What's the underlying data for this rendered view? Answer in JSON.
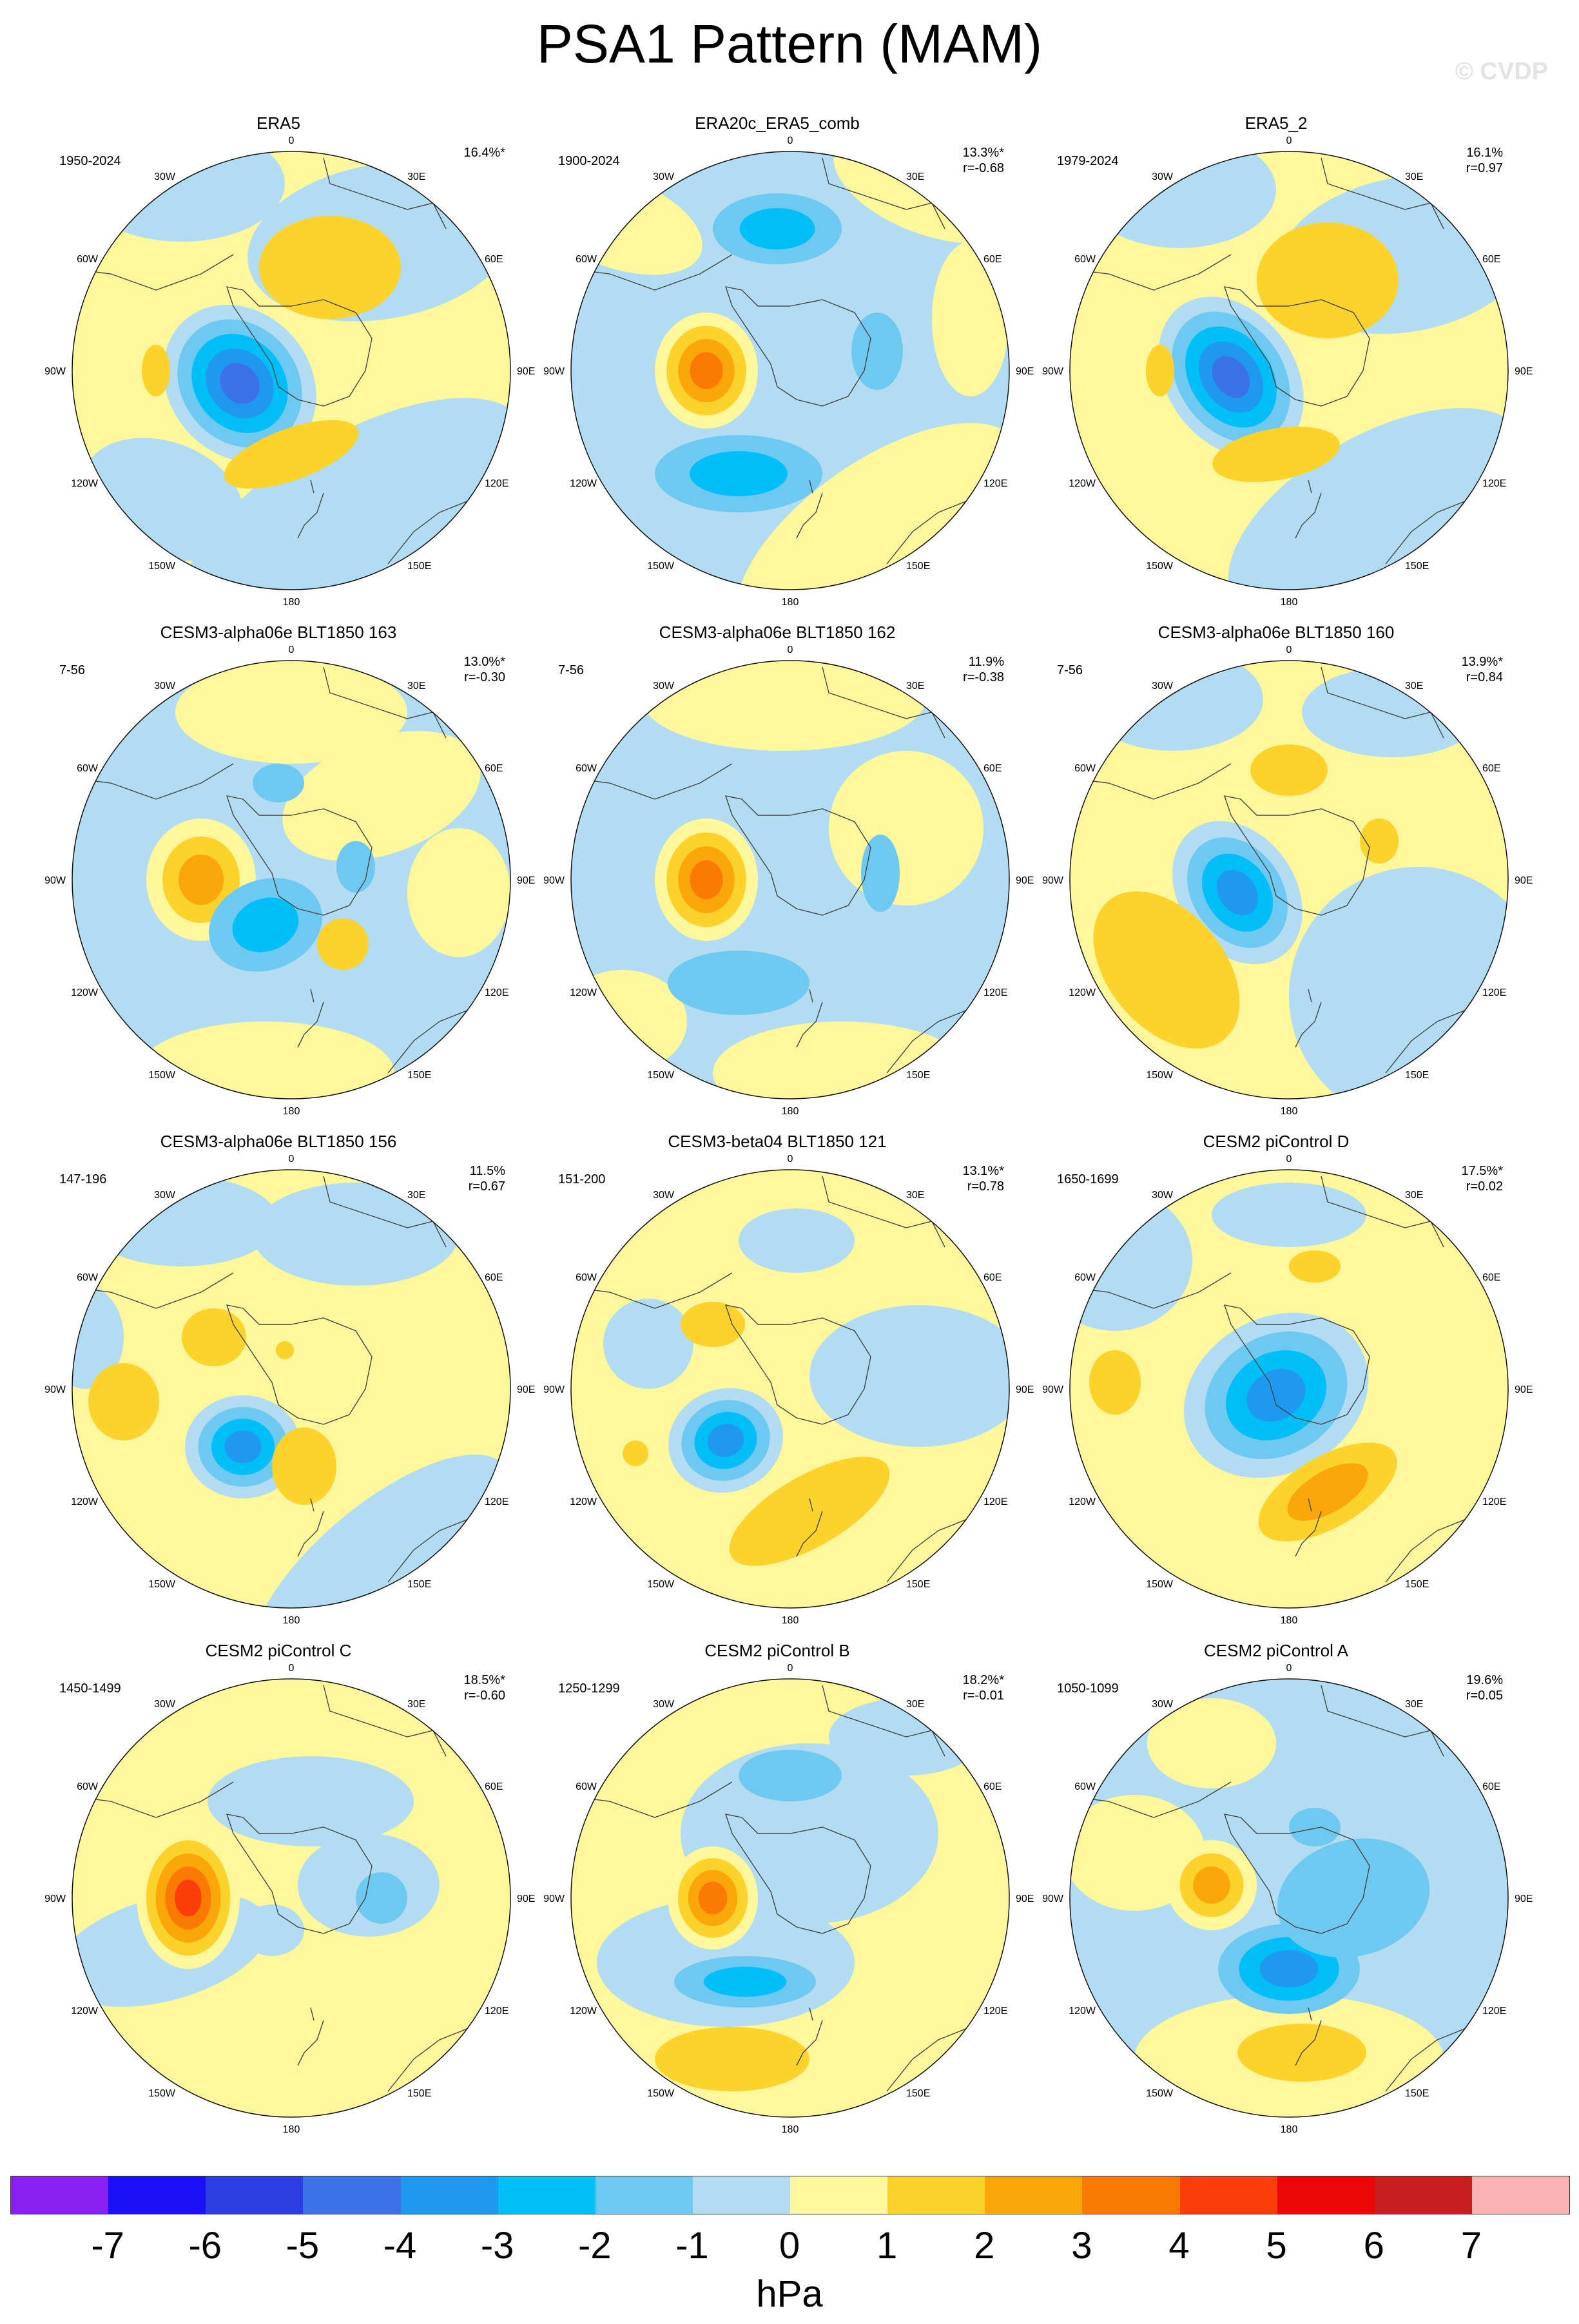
{
  "title": "PSA1 Pattern (MAM)",
  "watermark": "© CVDP",
  "units": "hPa",
  "colorbar": {
    "colors": [
      "#8a20f0",
      "#1a12f5",
      "#2b3fe0",
      "#3a72e8",
      "#1f98f0",
      "#00bff7",
      "#6fc8ef",
      "#b2dcf2",
      "#fff79b",
      "#fcd22c",
      "#fba60a",
      "#fb7a06",
      "#fb3e0a",
      "#ee0707",
      "#c81e1e",
      "#f9b3b3"
    ],
    "tick_labels": [
      "-7",
      "-6",
      "-5",
      "-4",
      "-3",
      "-2",
      "-1",
      "0",
      "1",
      "2",
      "3",
      "4",
      "5",
      "6",
      "7"
    ]
  },
  "axis_labels": {
    "top": "0",
    "bottom": "180",
    "left": "90W",
    "right": "90E",
    "ul1": "30W",
    "ul2": "60W",
    "ll1": "120W",
    "ll2": "150W",
    "ur1": "30E",
    "ur2": "60E",
    "lr1": "120E",
    "lr2": "150E"
  },
  "panels": [
    {
      "title": "ERA5",
      "years": "1950-2024",
      "pct": "16.4%*",
      "r": ""
    },
    {
      "title": "ERA20c_ERA5_comb",
      "years": "1900-2024",
      "pct": "13.3%*",
      "r": "r=-0.68"
    },
    {
      "title": "ERA5_2",
      "years": "1979-2024",
      "pct": "16.1%",
      "r": "r=0.97"
    },
    {
      "title": "CESM3-alpha06e BLT1850 163",
      "years": "7-56",
      "pct": "13.0%*",
      "r": "r=-0.30"
    },
    {
      "title": "CESM3-alpha06e BLT1850 162",
      "years": "7-56",
      "pct": "11.9%",
      "r": "r=-0.38"
    },
    {
      "title": "CESM3-alpha06e BLT1850 160",
      "years": "7-56",
      "pct": "13.9%*",
      "r": "r=0.84"
    },
    {
      "title": "CESM3-alpha06e BLT1850 156",
      "years": "147-196",
      "pct": "11.5%",
      "r": "r=0.67"
    },
    {
      "title": "CESM3-beta04 BLT1850 121",
      "years": "151-200",
      "pct": "13.1%*",
      "r": "r=0.78"
    },
    {
      "title": "CESM2 piControl D",
      "years": "1650-1699",
      "pct": "17.5%*",
      "r": "r=0.02"
    },
    {
      "title": "CESM2 piControl C",
      "years": "1450-1499",
      "pct": "18.5%*",
      "r": "r=-0.60"
    },
    {
      "title": "CESM2 piControl B",
      "years": "1250-1299",
      "pct": "18.2%*",
      "r": "r=-0.01"
    },
    {
      "title": "CESM2 piControl A",
      "years": "1050-1099",
      "pct": "19.6%",
      "r": "r=0.05"
    }
  ]
}
